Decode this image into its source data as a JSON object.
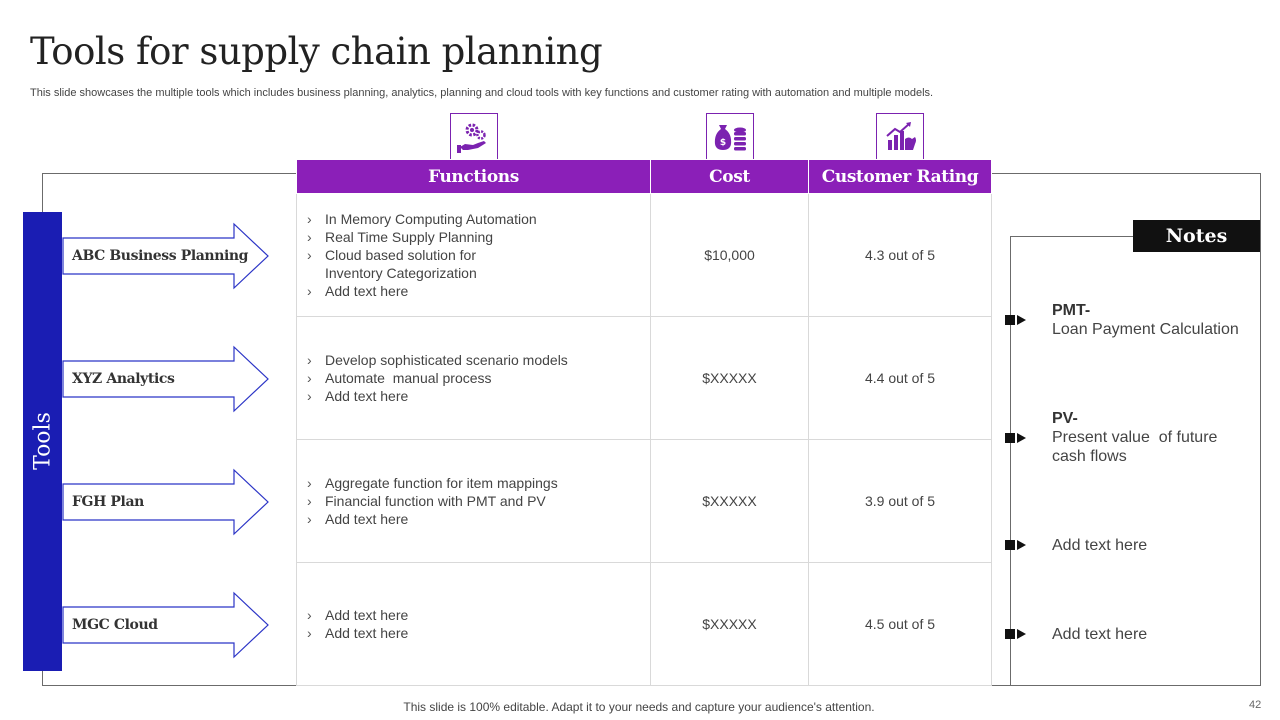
{
  "title": "Tools for supply chain planning",
  "subtitle": "This slide showcases the multiple tools which includes business planning, analytics, planning and cloud tools with key functions and customer rating with automation and multiple models.",
  "tools_label": "Tools",
  "tools": [
    "ABC Business Planning",
    "XYZ Analytics",
    "FGH Plan",
    "MGC Cloud"
  ],
  "icons": [
    "gears-hand-icon",
    "money-bag-coins-icon",
    "growth-chart-hand-icon"
  ],
  "accent_colors": {
    "header": "#8b1fb8",
    "tools_bar": "#1a1db3",
    "arrow_outline": "#1a1db3"
  },
  "table": {
    "headers": [
      "Functions",
      "Cost",
      "Customer Rating"
    ],
    "rows": [
      {
        "functions": [
          "In Memory Computing Automation",
          "Real Time Supply Planning",
          "Cloud based solution for Inventory Categorization",
          "Add text here"
        ],
        "cost": "$10,000",
        "rating": "4.3 out of 5"
      },
      {
        "functions": [
          "Develop sophisticated scenario models",
          "Automate  manual process",
          "Add text here"
        ],
        "cost": "$XXXXX",
        "rating": "4.4 out of 5"
      },
      {
        "functions": [
          "Aggregate function for item mappings",
          "Financial function with PMT and PV",
          "Add text here"
        ],
        "cost": "$XXXXX",
        "rating": "3.9 out of 5"
      },
      {
        "functions": [
          "Add text here",
          "Add text here"
        ],
        "cost": "$XXXXX",
        "rating": "4.5 out of 5"
      }
    ]
  },
  "notes": {
    "header": "Notes",
    "items": [
      {
        "title": "PMT-",
        "text": "Loan Payment Calculation"
      },
      {
        "title": "PV-",
        "text": "Present value  of future cash flows"
      },
      {
        "title": "",
        "text": "Add text here"
      },
      {
        "title": "",
        "text": "Add text here"
      }
    ]
  },
  "footer": "This slide is 100% editable. Adapt it to your needs and capture your audience's attention.",
  "page_number": "42"
}
